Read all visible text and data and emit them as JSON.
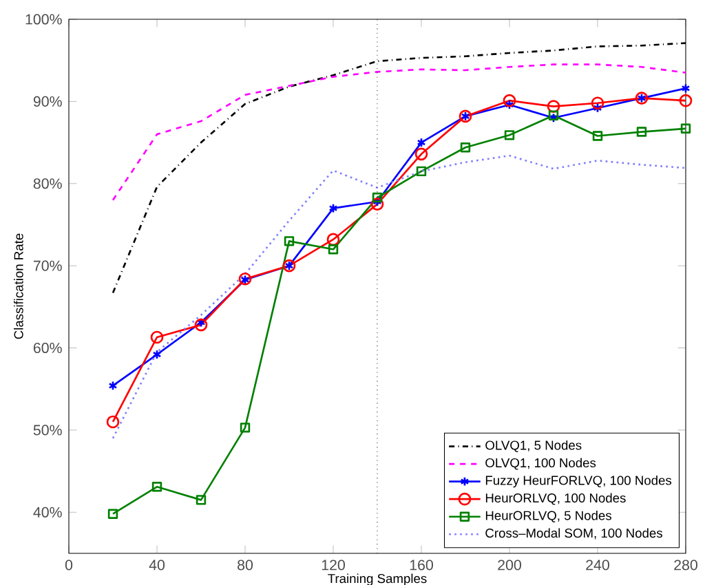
{
  "chart_data": {
    "type": "line",
    "xlabel": "Training Samples",
    "ylabel": "Classification Rate",
    "x": [
      20,
      40,
      60,
      80,
      100,
      120,
      140,
      160,
      180,
      200,
      220,
      240,
      260,
      280
    ],
    "xlim": [
      0,
      280
    ],
    "xticks": [
      0,
      40,
      80,
      120,
      160,
      200,
      240,
      280
    ],
    "ylim": [
      35,
      100
    ],
    "yticks": [
      {
        "value": 40,
        "label": "40%"
      },
      {
        "value": 50,
        "label": "50%"
      },
      {
        "value": 60,
        "label": "60%"
      },
      {
        "value": 70,
        "label": "70%"
      },
      {
        "value": 80,
        "label": "80%"
      },
      {
        "value": 90,
        "label": "90%"
      },
      {
        "value": 100,
        "label": "100%"
      }
    ],
    "grid": false,
    "legend": "bottom right",
    "ref_lines": [
      {
        "axis": "x",
        "value": 140,
        "line_style": "dotted",
        "color": "#000000"
      }
    ],
    "series": [
      {
        "name": "OLVQ1, 5 Nodes",
        "color": "#000000",
        "line_style": "dashdot",
        "marker": "none",
        "values": [
          66.7,
          79.6,
          85.0,
          89.7,
          91.8,
          93.2,
          94.9,
          95.3,
          95.5,
          95.9,
          96.2,
          96.7,
          96.8,
          97.1
        ]
      },
      {
        "name": "OLVQ1, 100 Nodes",
        "color": "#ff00ff",
        "line_style": "dashed",
        "marker": "none",
        "values": [
          78.0,
          86.0,
          87.6,
          90.8,
          91.9,
          93.0,
          93.6,
          93.9,
          93.8,
          94.2,
          94.5,
          94.5,
          94.2,
          93.5
        ]
      },
      {
        "name": "Fuzzy HeurFORLVQ, 100 Nodes",
        "color": "#0000ff",
        "line_style": "solid",
        "marker": "cross",
        "values": [
          55.4,
          59.2,
          63.1,
          68.3,
          70.0,
          77.0,
          77.8,
          85.0,
          88.2,
          89.6,
          88.0,
          89.2,
          90.4,
          91.6
        ]
      },
      {
        "name": "HeurORLVQ, 100 Nodes",
        "color": "#ff0000",
        "line_style": "solid",
        "marker": "circle",
        "values": [
          51.0,
          61.3,
          62.8,
          68.4,
          70.0,
          73.2,
          77.5,
          83.6,
          88.2,
          90.1,
          89.4,
          89.8,
          90.4,
          90.1
        ]
      },
      {
        "name": "HeurORLVQ, 5 Nodes",
        "color": "#008000",
        "line_style": "solid",
        "marker": "square",
        "values": [
          39.8,
          43.1,
          41.5,
          50.3,
          73.0,
          72.0,
          78.3,
          81.5,
          84.4,
          85.9,
          88.3,
          85.8,
          86.3,
          86.7
        ]
      },
      {
        "name": "Cross–Modal SOM, 100 Nodes",
        "color": "#7f7fff",
        "line_style": "dotted",
        "marker": "none",
        "values": [
          49.0,
          59.5,
          64.0,
          69.0,
          75.5,
          81.6,
          79.5,
          81.5,
          82.6,
          83.4,
          81.8,
          82.8,
          82.3,
          81.9
        ]
      }
    ]
  }
}
